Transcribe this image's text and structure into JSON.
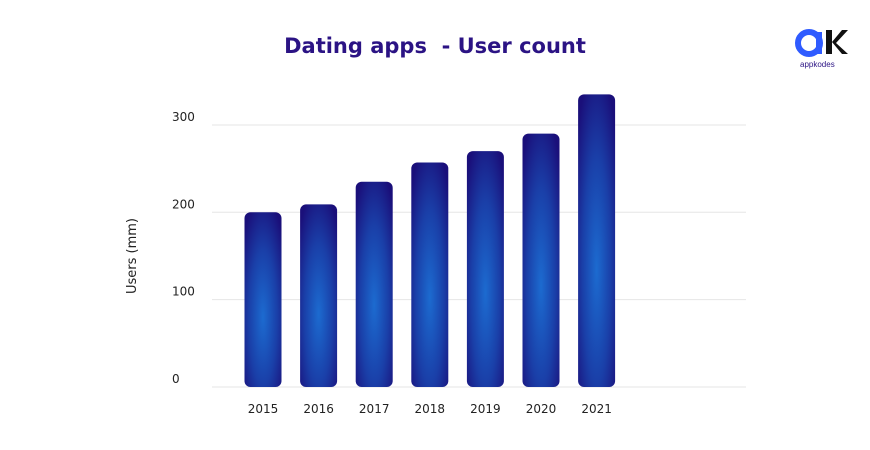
{
  "title": "Dating apps  - User count",
  "logo": {
    "text": "appkodes"
  },
  "chart_data": {
    "type": "bar",
    "title": "Dating apps  - User count",
    "xlabel": "",
    "ylabel": "Users (mm)",
    "categories": [
      "2015",
      "2016",
      "2017",
      "2018",
      "2019",
      "2020",
      "2021"
    ],
    "values": [
      200,
      209,
      235,
      257,
      270,
      290,
      335
    ],
    "ylim": [
      0,
      340
    ],
    "yticks": [
      0,
      100,
      200,
      300
    ],
    "grid": true,
    "legend": "none",
    "colors": {
      "bar_edge": "#1a0f7a",
      "bar_center": "#1c6bd0",
      "grid": "#e6e6e6",
      "title": "#2b1384"
    }
  }
}
